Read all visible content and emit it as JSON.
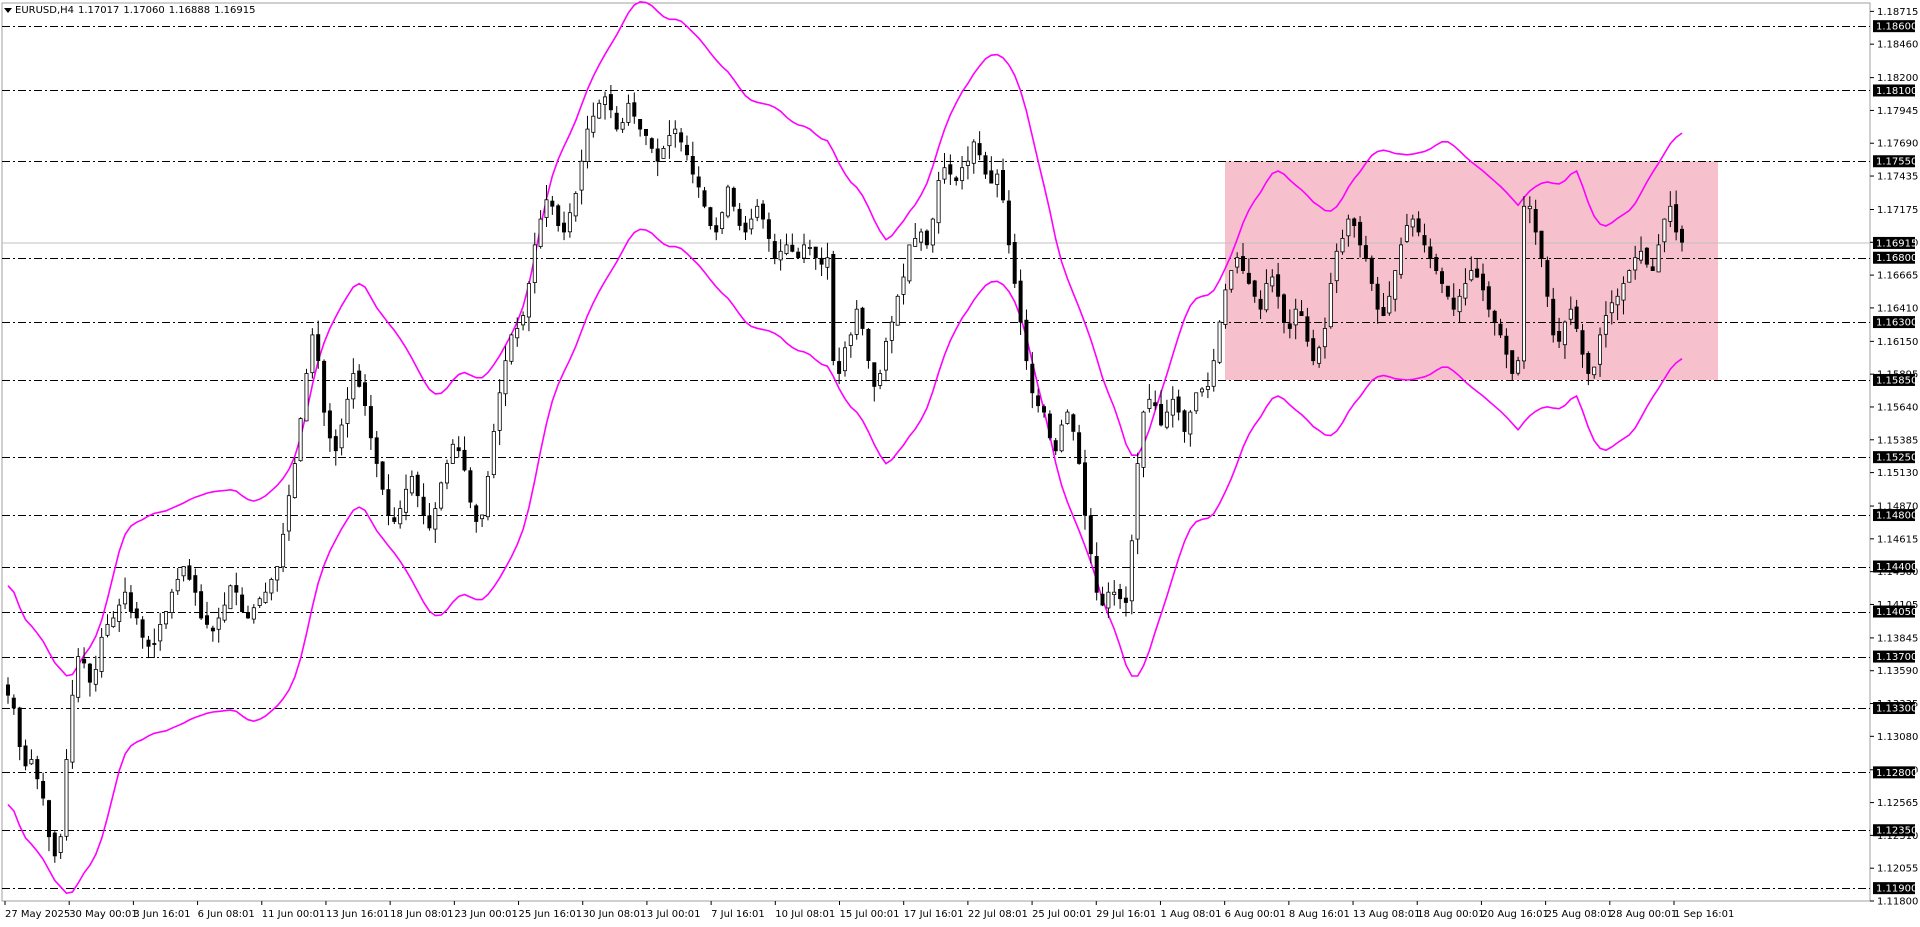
{
  "header": {
    "symbol": "EURUSD,H4",
    "open": "1.17017",
    "high": "1.17060",
    "low": "1.16888",
    "close": "1.16915"
  },
  "colors": {
    "background": "#ffffff",
    "candle": "#000000",
    "envelope": "#ff00ff",
    "range_box": "#f4b5c3",
    "level_line": "#000000",
    "current_price_line": "#c0c0c0"
  },
  "chart_data": {
    "type": "candlestick",
    "symbol": "EURUSD",
    "timeframe": "H4",
    "ylim": [
      1.118,
      1.1878
    ],
    "y_ticks": [
      "1.18715",
      "1.18460",
      "1.18200",
      "1.17945",
      "1.17690",
      "1.17435",
      "1.17175",
      "1.16920",
      "1.16665",
      "1.16410",
      "1.16150",
      "1.15895",
      "1.15640",
      "1.15385",
      "1.15130",
      "1.14870",
      "1.14615",
      "1.14360",
      "1.14105",
      "1.13845",
      "1.13590",
      "1.13335",
      "1.13080",
      "1.12820",
      "1.12565",
      "1.12310",
      "1.12055",
      "1.11800"
    ],
    "x_ticks": [
      "27 May 2025",
      "30 May 00:01",
      "3 Jun 16:01",
      "6 Jun 08:01",
      "11 Jun 00:01",
      "13 Jun 16:01",
      "18 Jun 08:01",
      "23 Jun 00:01",
      "25 Jun 16:01",
      "30 Jun 08:01",
      "3 Jul 00:01",
      "7 Jul 16:01",
      "10 Jul 08:01",
      "15 Jul 00:01",
      "17 Jul 16:01",
      "22 Jul 08:01",
      "25 Jul 00:01",
      "29 Jul 16:01",
      "1 Aug 08:01",
      "6 Aug 00:01",
      "8 Aug 16:01",
      "13 Aug 08:01",
      "18 Aug 00:01",
      "20 Aug 16:01",
      "25 Aug 08:01",
      "28 Aug 00:01",
      "1 Sep 16:01"
    ],
    "horizontal_levels": [
      "1.18600",
      "1.18100",
      "1.17550",
      "1.16800",
      "1.16300",
      "1.15850",
      "1.15250",
      "1.14800",
      "1.14400",
      "1.14050",
      "1.13700",
      "1.13300",
      "1.12800",
      "1.12350",
      "1.11900"
    ],
    "current_price": "1.16915",
    "range_box": {
      "x_start": "6 Aug 00:01",
      "x_end": "2 Sep",
      "y_low": 1.1585,
      "y_high": 1.1755
    },
    "close_series": [
      1.134,
      1.133,
      1.13,
      1.1285,
      1.129,
      1.1275,
      1.126,
      1.123,
      1.1215,
      1.123,
      1.129,
      1.134,
      1.137,
      1.1365,
      1.135,
      1.136,
      1.1385,
      1.1395,
      1.14,
      1.141,
      1.142,
      1.1405,
      1.14,
      1.1385,
      1.1378,
      1.138,
      1.1395,
      1.1405,
      1.142,
      1.143,
      1.144,
      1.143,
      1.142,
      1.14,
      1.1395,
      1.139,
      1.14,
      1.141,
      1.1425,
      1.142,
      1.1405,
      1.14,
      1.1408,
      1.1415,
      1.142,
      1.143,
      1.144,
      1.1465,
      1.1495,
      1.152,
      1.1555,
      1.159,
      1.162,
      1.16,
      1.156,
      1.154,
      1.153,
      1.155,
      1.157,
      1.159,
      1.158,
      1.1565,
      1.154,
      1.152,
      1.15,
      1.148,
      1.1475,
      1.1485,
      1.15,
      1.151,
      1.1495,
      1.148,
      1.147,
      1.1485,
      1.1505,
      1.152,
      1.1535,
      1.153,
      1.1515,
      1.149,
      1.1475,
      1.148,
      1.151,
      1.1545,
      1.1575,
      1.16,
      1.162,
      1.1625,
      1.1635,
      1.166,
      1.169,
      1.171,
      1.1725,
      1.172,
      1.1705,
      1.17,
      1.1715,
      1.173,
      1.1755,
      1.178,
      1.179,
      1.18,
      1.1805,
      1.1795,
      1.178,
      1.1785,
      1.18,
      1.179,
      1.178,
      1.1775,
      1.1765,
      1.1755,
      1.1765,
      1.1775,
      1.178,
      1.177,
      1.176,
      1.1745,
      1.1735,
      1.172,
      1.1705,
      1.17,
      1.1715,
      1.1735,
      1.172,
      1.1705,
      1.17,
      1.171,
      1.172,
      1.171,
      1.1695,
      1.168,
      1.1685,
      1.169,
      1.1685,
      1.168,
      1.169,
      1.1688,
      1.168,
      1.1675,
      1.168,
      1.16,
      1.159,
      1.161,
      1.162,
      1.164,
      1.1625,
      1.16,
      1.158,
      1.159,
      1.1615,
      1.163,
      1.165,
      1.1665,
      1.169,
      1.1695,
      1.17,
      1.169,
      1.171,
      1.174,
      1.175,
      1.1745,
      1.174,
      1.175,
      1.1755,
      1.177,
      1.176,
      1.1745,
      1.1738,
      1.1745,
      1.1725,
      1.169,
      1.166,
      1.163,
      1.16,
      1.1575,
      1.1565,
      1.156,
      1.154,
      1.153,
      1.155,
      1.156,
      1.1545,
      1.152,
      1.148,
      1.145,
      1.142,
      1.141,
      1.142,
      1.142,
      1.1415,
      1.1412,
      1.146,
      1.152,
      1.156,
      1.157,
      1.1565,
      1.155,
      1.156,
      1.157,
      1.156,
      1.1545,
      1.156,
      1.1575,
      1.1578,
      1.158,
      1.16,
      1.163,
      1.1655,
      1.167,
      1.168,
      1.167,
      1.166,
      1.165,
      1.164,
      1.166,
      1.1665,
      1.165,
      1.163,
      1.1625,
      1.164,
      1.1635,
      1.1615,
      1.16,
      1.161,
      1.1625,
      1.166,
      1.1685,
      1.1695,
      1.171,
      1.1705,
      1.169,
      1.168,
      1.166,
      1.164,
      1.1635,
      1.165,
      1.167,
      1.169,
      1.1705,
      1.171,
      1.17,
      1.169,
      1.168,
      1.167,
      1.166,
      1.165,
      1.164,
      1.165,
      1.166,
      1.167,
      1.1665,
      1.1655,
      1.164,
      1.163,
      1.162,
      1.1605,
      1.159,
      1.16,
      1.172,
      1.172,
      1.17,
      1.168,
      1.165,
      1.162,
      1.1615,
      1.163,
      1.164,
      1.1625,
      1.1605,
      1.159,
      1.1595,
      1.162,
      1.1635,
      1.1645,
      1.165,
      1.166,
      1.167,
      1.168,
      1.1685,
      1.1675,
      1.167,
      1.169,
      1.171,
      1.172,
      1.17,
      1.1692
    ],
    "envelope_offset_pct": 0.75
  }
}
